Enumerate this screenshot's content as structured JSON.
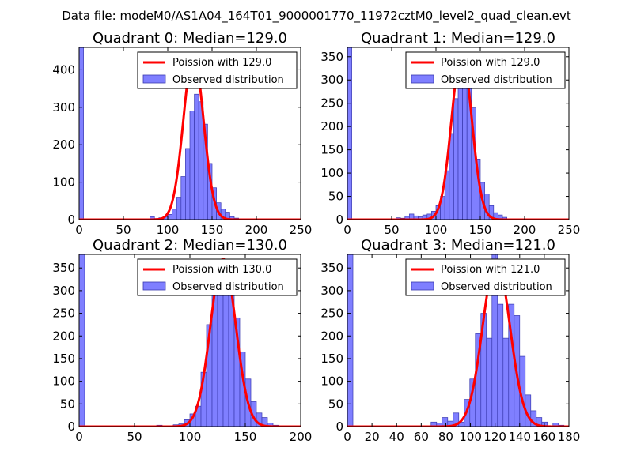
{
  "figure": {
    "suptitle": "Data file: modeM0/AS1A04_164T01_9000001770_11972cztM0_level2_quad_clean.evt"
  },
  "colors": {
    "bar_fill": "#7f7fff",
    "bar_edge": "#3a3ab0",
    "fit_line": "#ff0000"
  },
  "chart_data": [
    {
      "type": "bar",
      "title": "Quadrant 0: Median=129.0",
      "xlabel": "",
      "ylabel": "",
      "xlim": [
        0,
        250
      ],
      "ylim": [
        0,
        460
      ],
      "xticks": [
        0,
        50,
        100,
        150,
        200,
        250
      ],
      "yticks": [
        0,
        100,
        200,
        300,
        400
      ],
      "bin_width": 5,
      "edge_bar": {
        "x": 0,
        "value": 460
      },
      "bins": [
        {
          "x": 80,
          "value": 8
        },
        {
          "x": 85,
          "value": 3
        },
        {
          "x": 90,
          "value": 5
        },
        {
          "x": 95,
          "value": 8
        },
        {
          "x": 100,
          "value": 14
        },
        {
          "x": 105,
          "value": 28
        },
        {
          "x": 110,
          "value": 60
        },
        {
          "x": 115,
          "value": 115
        },
        {
          "x": 120,
          "value": 190
        },
        {
          "x": 125,
          "value": 290
        },
        {
          "x": 130,
          "value": 335
        },
        {
          "x": 135,
          "value": 315
        },
        {
          "x": 140,
          "value": 255
        },
        {
          "x": 145,
          "value": 150
        },
        {
          "x": 150,
          "value": 85
        },
        {
          "x": 155,
          "value": 45
        },
        {
          "x": 160,
          "value": 28
        },
        {
          "x": 165,
          "value": 20
        },
        {
          "x": 170,
          "value": 8
        },
        {
          "x": 175,
          "value": 4
        },
        {
          "x": 180,
          "value": 2
        }
      ],
      "fit": {
        "label": "Poission with 129.0",
        "mean": 129.0,
        "peak": 440
      },
      "legend": {
        "line_label": "Poission with 129.0",
        "bar_label": "Observed distribution",
        "position": "top-right"
      }
    },
    {
      "type": "bar",
      "title": "Quadrant 1: Median=129.0",
      "xlabel": "",
      "ylabel": "",
      "xlim": [
        0,
        250
      ],
      "ylim": [
        0,
        370
      ],
      "xticks": [
        0,
        50,
        100,
        150,
        200,
        250
      ],
      "yticks": [
        0,
        50,
        100,
        150,
        200,
        250,
        300,
        350
      ],
      "bin_width": 5,
      "edge_bar": {
        "x": 0,
        "value": 370
      },
      "bins": [
        {
          "x": 55,
          "value": 4
        },
        {
          "x": 60,
          "value": 3
        },
        {
          "x": 65,
          "value": 7
        },
        {
          "x": 70,
          "value": 12
        },
        {
          "x": 75,
          "value": 8
        },
        {
          "x": 80,
          "value": 6
        },
        {
          "x": 85,
          "value": 10
        },
        {
          "x": 90,
          "value": 12
        },
        {
          "x": 95,
          "value": 18
        },
        {
          "x": 100,
          "value": 30
        },
        {
          "x": 105,
          "value": 50
        },
        {
          "x": 110,
          "value": 105
        },
        {
          "x": 115,
          "value": 185
        },
        {
          "x": 120,
          "value": 260
        },
        {
          "x": 125,
          "value": 345
        },
        {
          "x": 130,
          "value": 340
        },
        {
          "x": 135,
          "value": 350
        },
        {
          "x": 140,
          "value": 240
        },
        {
          "x": 145,
          "value": 130
        },
        {
          "x": 150,
          "value": 80
        },
        {
          "x": 155,
          "value": 55
        },
        {
          "x": 160,
          "value": 30
        },
        {
          "x": 165,
          "value": 15
        },
        {
          "x": 170,
          "value": 10
        },
        {
          "x": 175,
          "value": 5
        }
      ],
      "fit": {
        "label": "Poission with 129.0",
        "mean": 129.0,
        "peak": 358
      },
      "legend": {
        "line_label": "Poission with 129.0",
        "bar_label": "Observed distribution",
        "position": "top-right"
      }
    },
    {
      "type": "bar",
      "title": "Quadrant 2: Median=130.0",
      "xlabel": "",
      "ylabel": "",
      "xlim": [
        0,
        200
      ],
      "ylim": [
        0,
        380
      ],
      "xticks": [
        0,
        50,
        100,
        150,
        200
      ],
      "yticks": [
        0,
        50,
        100,
        150,
        200,
        250,
        300,
        350
      ],
      "bin_width": 5,
      "edge_bar": {
        "x": 0,
        "value": 380
      },
      "bins": [
        {
          "x": 70,
          "value": 3
        },
        {
          "x": 85,
          "value": 4
        },
        {
          "x": 90,
          "value": 6
        },
        {
          "x": 95,
          "value": 15
        },
        {
          "x": 100,
          "value": 28
        },
        {
          "x": 105,
          "value": 45
        },
        {
          "x": 110,
          "value": 120
        },
        {
          "x": 115,
          "value": 225
        },
        {
          "x": 120,
          "value": 290
        },
        {
          "x": 125,
          "value": 300
        },
        {
          "x": 130,
          "value": 350
        },
        {
          "x": 135,
          "value": 305
        },
        {
          "x": 140,
          "value": 240
        },
        {
          "x": 145,
          "value": 165
        },
        {
          "x": 150,
          "value": 105
        },
        {
          "x": 155,
          "value": 55
        },
        {
          "x": 160,
          "value": 30
        },
        {
          "x": 165,
          "value": 20
        },
        {
          "x": 170,
          "value": 8
        },
        {
          "x": 175,
          "value": 3
        }
      ],
      "fit": {
        "label": "Poission with 130.0",
        "mean": 130.0,
        "peak": 370
      },
      "legend": {
        "line_label": "Poission with 130.0",
        "bar_label": "Observed distribution",
        "position": "top-right"
      }
    },
    {
      "type": "bar",
      "title": "Quadrant 3: Median=121.0",
      "xlabel": "",
      "ylabel": "",
      "xlim": [
        0,
        180
      ],
      "ylim": [
        0,
        380
      ],
      "xticks": [
        0,
        20,
        40,
        60,
        80,
        100,
        120,
        140,
        160,
        180
      ],
      "yticks": [
        0,
        50,
        100,
        150,
        200,
        250,
        300,
        350
      ],
      "bin_width": 4.5,
      "edge_bar": {
        "x": 0,
        "value": 380
      },
      "bins": [
        {
          "x": 68,
          "value": 10
        },
        {
          "x": 72.5,
          "value": 8
        },
        {
          "x": 77,
          "value": 20
        },
        {
          "x": 81.5,
          "value": 12
        },
        {
          "x": 86,
          "value": 30
        },
        {
          "x": 90.5,
          "value": 10
        },
        {
          "x": 95,
          "value": 60
        },
        {
          "x": 99.5,
          "value": 105
        },
        {
          "x": 104,
          "value": 205
        },
        {
          "x": 108.5,
          "value": 250
        },
        {
          "x": 113,
          "value": 195
        },
        {
          "x": 117.5,
          "value": 380
        },
        {
          "x": 122,
          "value": 270
        },
        {
          "x": 126.5,
          "value": 195
        },
        {
          "x": 131,
          "value": 270
        },
        {
          "x": 135.5,
          "value": 245
        },
        {
          "x": 140,
          "value": 155
        },
        {
          "x": 144.5,
          "value": 70
        },
        {
          "x": 149,
          "value": 35
        },
        {
          "x": 153.5,
          "value": 20
        },
        {
          "x": 158,
          "value": 10
        },
        {
          "x": 167,
          "value": 8
        },
        {
          "x": 171.5,
          "value": 3
        }
      ],
      "fit": {
        "label": "Poission with 121.0",
        "mean": 121.0,
        "peak": 368
      },
      "legend": {
        "line_label": "Poission with 121.0",
        "bar_label": "Observed distribution",
        "position": "top-right"
      }
    }
  ]
}
